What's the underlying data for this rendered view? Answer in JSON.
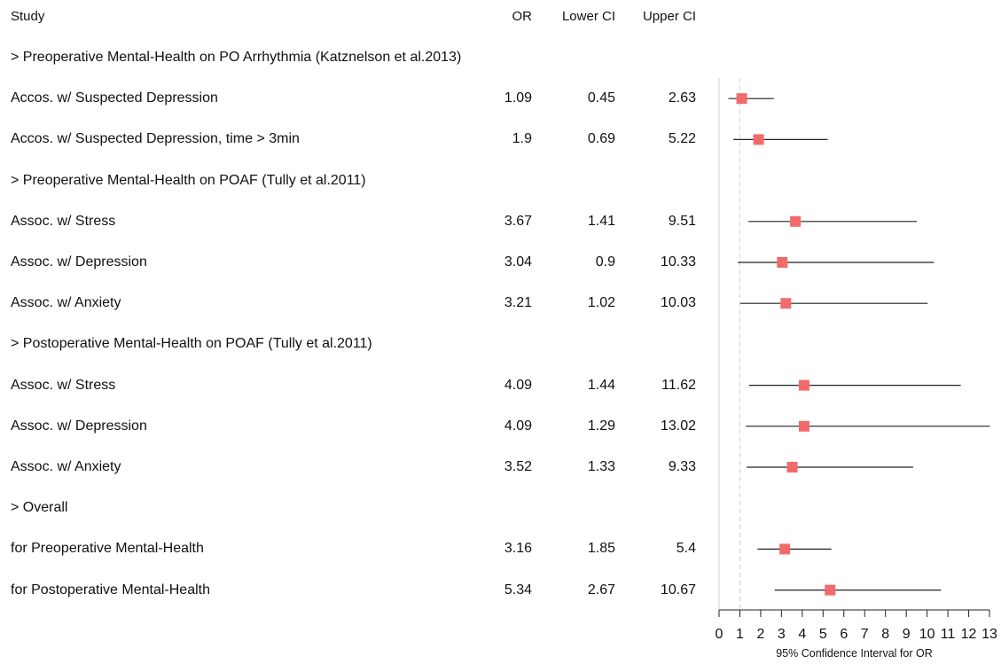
{
  "columns": {
    "study": "Study",
    "or": "OR",
    "lower": "Lower CI",
    "upper": "Upper CI"
  },
  "rows": [
    {
      "type": "group",
      "label": "> Preoperative Mental-Health on PO Arrhythmia (Katznelson et al.2013)"
    },
    {
      "type": "data",
      "label": "Accos. w/ Suspected Depression",
      "or": "1.09",
      "lower": "0.45",
      "upper": "2.63"
    },
    {
      "type": "data",
      "label": "Accos. w/ Suspected Depression, time > 3min",
      "or": "1.9",
      "lower": "0.69",
      "upper": "5.22"
    },
    {
      "type": "group",
      "label": "> Preoperative Mental-Health on POAF (Tully et al.2011)"
    },
    {
      "type": "data",
      "label": "Assoc. w/ Stress",
      "or": "3.67",
      "lower": "1.41",
      "upper": "9.51"
    },
    {
      "type": "data",
      "label": "Assoc. w/ Depression",
      "or": "3.04",
      "lower": "0.9",
      "upper": "10.33"
    },
    {
      "type": "data",
      "label": "Assoc. w/ Anxiety",
      "or": "3.21",
      "lower": "1.02",
      "upper": "10.03"
    },
    {
      "type": "group",
      "label": "> Postoperative Mental-Health on POAF (Tully et al.2011)"
    },
    {
      "type": "data",
      "label": "Assoc. w/ Stress",
      "or": "4.09",
      "lower": "1.44",
      "upper": "11.62"
    },
    {
      "type": "data",
      "label": "Assoc. w/ Depression",
      "or": "4.09",
      "lower": "1.29",
      "upper": "13.02"
    },
    {
      "type": "data",
      "label": "Assoc. w/ Anxiety",
      "or": "3.52",
      "lower": "1.33",
      "upper": "9.33"
    },
    {
      "type": "group",
      "label": "> Overall"
    },
    {
      "type": "data",
      "label": "for Preoperative Mental-Health",
      "or": "3.16",
      "lower": "1.85",
      "upper": "5.4"
    },
    {
      "type": "data",
      "label": "for Postoperative Mental-Health",
      "or": "5.34",
      "lower": "2.67",
      "upper": "10.67"
    }
  ],
  "chart_data": {
    "type": "scatter",
    "xlabel": "95% Confidence Interval for OR",
    "xlim": [
      0,
      13
    ],
    "xticks": [
      "0",
      "1",
      "2",
      "3",
      "4",
      "5",
      "6",
      "7",
      "8",
      "9",
      "10",
      "11",
      "12",
      "13"
    ],
    "reference_line": 1,
    "marker_color": "#f26b6b",
    "points": [
      {
        "label": "Accos. w/ Suspected Depression",
        "or": 1.09,
        "lower": 0.45,
        "upper": 2.63
      },
      {
        "label": "Accos. w/ Suspected Depression, time > 3min",
        "or": 1.9,
        "lower": 0.69,
        "upper": 5.22
      },
      {
        "label": "Assoc. w/ Stress",
        "or": 3.67,
        "lower": 1.41,
        "upper": 9.51
      },
      {
        "label": "Assoc. w/ Depression",
        "or": 3.04,
        "lower": 0.9,
        "upper": 10.33
      },
      {
        "label": "Assoc. w/ Anxiety",
        "or": 3.21,
        "lower": 1.02,
        "upper": 10.03
      },
      {
        "label": "Assoc. w/ Stress",
        "or": 4.09,
        "lower": 1.44,
        "upper": 11.62
      },
      {
        "label": "Assoc. w/ Depression",
        "or": 4.09,
        "lower": 1.29,
        "upper": 13.02
      },
      {
        "label": "Assoc. w/ Anxiety",
        "or": 3.52,
        "lower": 1.33,
        "upper": 9.33
      },
      {
        "label": "for Preoperative Mental-Health",
        "or": 3.16,
        "lower": 1.85,
        "upper": 5.4
      },
      {
        "label": "for Postoperative Mental-Health",
        "or": 5.34,
        "lower": 2.67,
        "upper": 10.67
      }
    ]
  }
}
